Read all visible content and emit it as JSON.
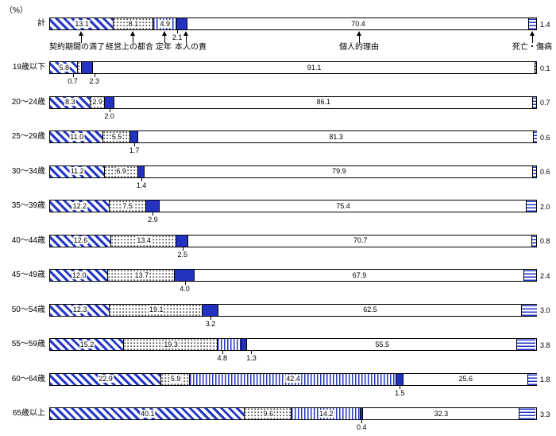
{
  "unit_label": "（%）",
  "chart_data": {
    "type": "bar",
    "variant": "100%-horizontal-stacked",
    "unit": "%",
    "xlim": [
      0,
      100
    ],
    "grid": false,
    "legend_position": "annotations-with-arrows-on-total-bar",
    "series_labels": [
      "契約期間の満了",
      "経営上の都合",
      "定年",
      "本人の責",
      "個人的理由",
      "死亡・傷病"
    ],
    "categories": [
      "計",
      "19歳以下",
      "20〜24歳",
      "25〜29歳",
      "30〜34歳",
      "35〜39歳",
      "40〜44歳",
      "45〜49歳",
      "50〜54歳",
      "55〜59歳",
      "60〜64歳",
      "65歳以上"
    ],
    "rows": [
      {
        "category": "計",
        "values": [
          13.1,
          8.1,
          4.9,
          2.1,
          70.4,
          1.4
        ],
        "below_label_indices": [
          3
        ]
      },
      {
        "category": "19歳以下",
        "values": [
          5.8,
          0.7,
          0,
          2.3,
          91.1,
          0.1
        ],
        "below_label_indices": [
          1,
          3
        ]
      },
      {
        "category": "20〜24歳",
        "values": [
          8.3,
          2.9,
          0,
          2.0,
          86.1,
          0.7
        ],
        "below_label_indices": [
          3
        ]
      },
      {
        "category": "25〜29歳",
        "values": [
          11.0,
          5.5,
          0,
          1.7,
          81.3,
          0.6
        ],
        "below_label_indices": [
          3
        ]
      },
      {
        "category": "30〜34歳",
        "values": [
          11.2,
          6.9,
          0,
          1.4,
          79.9,
          0.6
        ],
        "below_label_indices": [
          3
        ]
      },
      {
        "category": "35〜39歳",
        "values": [
          12.2,
          7.5,
          0,
          2.9,
          75.4,
          2.0
        ],
        "below_label_indices": [
          3
        ]
      },
      {
        "category": "40〜44歳",
        "values": [
          12.6,
          13.4,
          0,
          2.5,
          70.7,
          0.8
        ],
        "below_label_indices": [
          3
        ]
      },
      {
        "category": "45〜49歳",
        "values": [
          12.0,
          13.7,
          0,
          4.0,
          67.9,
          2.4
        ],
        "below_label_indices": [
          3
        ]
      },
      {
        "category": "50〜54歳",
        "values": [
          12.3,
          19.1,
          0,
          3.2,
          62.5,
          3.0
        ],
        "below_label_indices": [
          3
        ]
      },
      {
        "category": "55〜59歳",
        "values": [
          15.2,
          19.3,
          4.8,
          1.3,
          55.5,
          3.8
        ],
        "below_label_indices": [
          2,
          3
        ]
      },
      {
        "category": "60〜64歳",
        "values": [
          22.9,
          5.9,
          42.4,
          1.5,
          25.6,
          1.8
        ],
        "below_label_indices": [
          3
        ]
      },
      {
        "category": "65歳以上",
        "values": [
          40.1,
          9.6,
          14.2,
          0.4,
          32.3,
          3.3
        ],
        "below_label_indices": [
          3
        ]
      }
    ],
    "colors": {
      "pattern_blue": "#2337c6",
      "solid_blue": "#2333c0",
      "dot_gray": "#5a5a5a",
      "border": "#000000",
      "background": "#ffffff"
    }
  }
}
